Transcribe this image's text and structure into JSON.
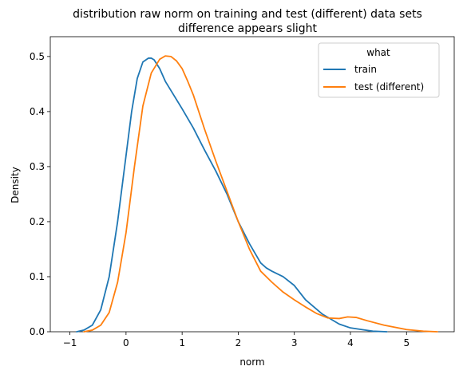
{
  "chart_data": {
    "type": "line",
    "title": "distribution raw norm on training and test (different) data sets",
    "subtitle": "difference appears slight",
    "xlabel": "norm",
    "ylabel": "Density",
    "xlim": [
      -1.35,
      5.85
    ],
    "ylim": [
      0,
      0.536
    ],
    "x_ticks": [
      -1,
      0,
      1,
      2,
      3,
      4,
      5
    ],
    "y_ticks": [
      0.0,
      0.1,
      0.2,
      0.3,
      0.4,
      0.5
    ],
    "x_tick_labels": [
      "−1",
      "0",
      "1",
      "2",
      "3",
      "4",
      "5"
    ],
    "y_tick_labels": [
      "0.0",
      "0.1",
      "0.2",
      "0.3",
      "0.4",
      "0.5"
    ],
    "grid": false,
    "legend": {
      "title": "what",
      "placement": "top-right"
    },
    "series": [
      {
        "name": "train",
        "color": "#1f77b4",
        "x": [
          -0.88,
          -0.75,
          -0.6,
          -0.45,
          -0.3,
          -0.15,
          0.0,
          0.1,
          0.2,
          0.3,
          0.4,
          0.45,
          0.5,
          0.6,
          0.7,
          0.85,
          1.0,
          1.2,
          1.4,
          1.6,
          1.8,
          2.0,
          2.2,
          2.4,
          2.5,
          2.6,
          2.8,
          3.0,
          3.2,
          3.5,
          3.8,
          4.0,
          4.2,
          4.4,
          4.65
        ],
        "y": [
          0.0,
          0.003,
          0.012,
          0.04,
          0.1,
          0.2,
          0.32,
          0.4,
          0.46,
          0.49,
          0.497,
          0.497,
          0.494,
          0.478,
          0.455,
          0.43,
          0.405,
          0.37,
          0.33,
          0.292,
          0.25,
          0.2,
          0.16,
          0.125,
          0.116,
          0.11,
          0.1,
          0.084,
          0.058,
          0.032,
          0.014,
          0.007,
          0.004,
          0.001,
          0.0
        ]
      },
      {
        "name": "test (different)",
        "color": "#ff7f0e",
        "x": [
          -0.75,
          -0.6,
          -0.45,
          -0.3,
          -0.15,
          0.0,
          0.15,
          0.3,
          0.45,
          0.6,
          0.7,
          0.8,
          0.9,
          1.0,
          1.1,
          1.2,
          1.4,
          1.6,
          1.8,
          2.0,
          2.2,
          2.4,
          2.6,
          2.8,
          3.0,
          3.2,
          3.4,
          3.6,
          3.8,
          3.95,
          4.1,
          4.3,
          4.6,
          5.0,
          5.3,
          5.55
        ],
        "y": [
          0.0,
          0.003,
          0.012,
          0.035,
          0.09,
          0.18,
          0.3,
          0.41,
          0.47,
          0.495,
          0.501,
          0.5,
          0.492,
          0.478,
          0.455,
          0.43,
          0.368,
          0.31,
          0.255,
          0.2,
          0.15,
          0.11,
          0.09,
          0.072,
          0.058,
          0.045,
          0.033,
          0.025,
          0.024,
          0.027,
          0.026,
          0.02,
          0.012,
          0.004,
          0.001,
          0.0
        ]
      }
    ]
  }
}
